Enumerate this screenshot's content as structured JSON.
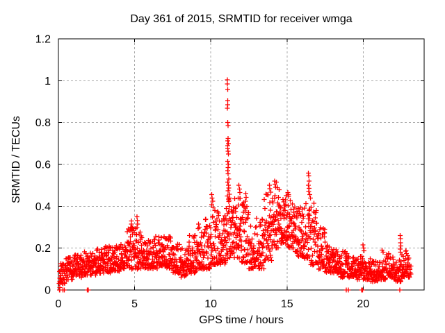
{
  "chart_data": {
    "type": "scatter",
    "title": "Day 361 of 2015, SRMTID for receiver wmga",
    "xlabel": "GPS time / hours",
    "ylabel": "SRMTID / TECUs",
    "xlim": [
      0,
      24
    ],
    "ylim": [
      0,
      1.2
    ],
    "xticks": [
      {
        "v": 0,
        "label": "0"
      },
      {
        "v": 5,
        "label": "5"
      },
      {
        "v": 10,
        "label": "10"
      },
      {
        "v": 15,
        "label": "15"
      },
      {
        "v": 20,
        "label": "20"
      }
    ],
    "yticks": [
      {
        "v": 0,
        "label": "0"
      },
      {
        "v": 0.2,
        "label": "0.2"
      },
      {
        "v": 0.4,
        "label": "0.4"
      },
      {
        "v": 0.6,
        "label": "0.6"
      },
      {
        "v": 0.8,
        "label": "0.8"
      },
      {
        "v": 1,
        "label": "1"
      },
      {
        "v": 1.2,
        "label": "1.2"
      }
    ],
    "grid": true,
    "legend": "none",
    "marker": {
      "shape": "plus",
      "color": "#ff0000",
      "size": 7
    },
    "colors": {
      "background": "#ffffff",
      "border": "#000000",
      "grid": "#a8a8a8",
      "text": "#000000"
    },
    "seed": 7,
    "band_bins": [
      [
        0.05,
        0.5,
        36,
        0.03,
        0.13
      ],
      [
        0.5,
        1.0,
        44,
        0.05,
        0.155
      ],
      [
        1.0,
        1.5,
        44,
        0.06,
        0.17
      ],
      [
        1.5,
        2.0,
        44,
        0.07,
        0.185
      ],
      [
        2.0,
        2.5,
        44,
        0.07,
        0.185
      ],
      [
        2.5,
        3.0,
        44,
        0.08,
        0.2
      ],
      [
        3.0,
        3.5,
        44,
        0.08,
        0.215
      ],
      [
        3.5,
        4.0,
        44,
        0.09,
        0.21
      ],
      [
        4.0,
        4.5,
        44,
        0.1,
        0.225
      ],
      [
        4.5,
        5.0,
        44,
        0.1,
        0.3
      ],
      [
        5.0,
        5.5,
        44,
        0.1,
        0.3
      ],
      [
        5.5,
        6.0,
        44,
        0.1,
        0.24
      ],
      [
        6.0,
        6.5,
        44,
        0.1,
        0.26
      ],
      [
        6.5,
        7.0,
        44,
        0.115,
        0.27
      ],
      [
        7.0,
        7.5,
        44,
        0.1,
        0.26
      ],
      [
        7.5,
        8.0,
        44,
        0.08,
        0.22
      ],
      [
        8.0,
        8.5,
        42,
        0.06,
        0.2
      ],
      [
        8.5,
        9.0,
        44,
        0.08,
        0.26
      ],
      [
        9.0,
        9.5,
        44,
        0.1,
        0.3
      ],
      [
        9.5,
        10.0,
        44,
        0.1,
        0.34
      ],
      [
        10.0,
        10.5,
        46,
        0.12,
        0.38
      ],
      [
        10.5,
        11.0,
        46,
        0.12,
        0.36
      ],
      [
        11.0,
        11.5,
        48,
        0.15,
        0.45
      ],
      [
        11.5,
        12.0,
        46,
        0.15,
        0.46
      ],
      [
        12.0,
        12.5,
        46,
        0.13,
        0.42
      ],
      [
        12.5,
        13.0,
        44,
        0.1,
        0.32
      ],
      [
        13.0,
        13.5,
        44,
        0.1,
        0.36
      ],
      [
        13.5,
        14.0,
        46,
        0.14,
        0.46
      ],
      [
        14.0,
        14.5,
        48,
        0.2,
        0.5
      ],
      [
        14.5,
        15.0,
        48,
        0.22,
        0.47
      ],
      [
        15.0,
        15.5,
        48,
        0.2,
        0.45
      ],
      [
        15.5,
        16.0,
        46,
        0.16,
        0.41
      ],
      [
        16.0,
        16.5,
        44,
        0.15,
        0.44
      ],
      [
        16.5,
        17.0,
        44,
        0.12,
        0.42
      ],
      [
        17.0,
        17.5,
        44,
        0.1,
        0.3
      ],
      [
        17.5,
        18.0,
        44,
        0.08,
        0.22
      ],
      [
        18.0,
        18.5,
        44,
        0.08,
        0.2
      ],
      [
        18.5,
        19.0,
        42,
        0.06,
        0.185
      ],
      [
        19.0,
        19.5,
        42,
        0.06,
        0.165
      ],
      [
        19.5,
        20.0,
        42,
        0.05,
        0.18
      ],
      [
        20.0,
        20.5,
        42,
        0.05,
        0.155
      ],
      [
        20.5,
        21.0,
        42,
        0.04,
        0.145
      ],
      [
        21.0,
        21.5,
        42,
        0.05,
        0.155
      ],
      [
        21.5,
        22.0,
        42,
        0.06,
        0.175
      ],
      [
        22.0,
        22.5,
        40,
        0.04,
        0.145
      ],
      [
        22.5,
        23.0,
        42,
        0.06,
        0.19
      ],
      [
        23.0,
        23.15,
        8,
        0.06,
        0.13
      ]
    ],
    "peak_points": [
      [
        11.08,
        1.005
      ],
      [
        11.09,
        0.985
      ],
      [
        11.11,
        0.958
      ],
      [
        11.1,
        0.905
      ],
      [
        11.12,
        0.885
      ],
      [
        11.09,
        0.868
      ],
      [
        11.11,
        0.8
      ],
      [
        11.13,
        0.785
      ],
      [
        11.13,
        0.725
      ],
      [
        11.1,
        0.712
      ],
      [
        11.15,
        0.7
      ],
      [
        11.12,
        0.69
      ],
      [
        11.11,
        0.676
      ],
      [
        11.14,
        0.663
      ],
      [
        11.16,
        0.65
      ],
      [
        11.12,
        0.615
      ],
      [
        11.15,
        0.6
      ],
      [
        11.13,
        0.585
      ],
      [
        11.11,
        0.57
      ],
      [
        11.14,
        0.556
      ],
      [
        11.18,
        0.53
      ],
      [
        11.12,
        0.515
      ],
      [
        11.16,
        0.5
      ],
      [
        11.19,
        0.488
      ],
      [
        11.13,
        0.474
      ],
      [
        11.22,
        0.458
      ],
      [
        11.25,
        0.44
      ],
      [
        11.2,
        0.43
      ],
      [
        4.78,
        0.33
      ],
      [
        4.8,
        0.315
      ],
      [
        4.82,
        0.3
      ],
      [
        4.76,
        0.29
      ],
      [
        5.15,
        0.35
      ],
      [
        5.18,
        0.332
      ],
      [
        5.2,
        0.315
      ],
      [
        5.16,
        0.298
      ],
      [
        9.2,
        0.315
      ],
      [
        9.23,
        0.3
      ],
      [
        10.05,
        0.455
      ],
      [
        10.08,
        0.44
      ],
      [
        10.12,
        0.424
      ],
      [
        10.07,
        0.408
      ],
      [
        10.15,
        0.395
      ],
      [
        11.85,
        0.5
      ],
      [
        11.88,
        0.482
      ],
      [
        11.9,
        0.465
      ],
      [
        12.3,
        0.46
      ],
      [
        12.33,
        0.442
      ],
      [
        12.28,
        0.425
      ],
      [
        13.85,
        0.5
      ],
      [
        13.88,
        0.484
      ],
      [
        13.95,
        0.468
      ],
      [
        14.18,
        0.52
      ],
      [
        14.22,
        0.505
      ],
      [
        14.3,
        0.515
      ],
      [
        14.26,
        0.49
      ],
      [
        15.05,
        0.465
      ],
      [
        15.1,
        0.455
      ],
      [
        16.4,
        0.558
      ],
      [
        16.42,
        0.545
      ],
      [
        16.44,
        0.52
      ],
      [
        16.4,
        0.5
      ],
      [
        16.46,
        0.486
      ],
      [
        16.43,
        0.47
      ],
      [
        16.5,
        0.455
      ],
      [
        16.55,
        0.44
      ],
      [
        19.98,
        0.215
      ],
      [
        20.02,
        0.2
      ],
      [
        20.05,
        0.188
      ],
      [
        21.25,
        0.19
      ],
      [
        21.3,
        0.18
      ],
      [
        22.42,
        0.26
      ],
      [
        22.45,
        0.245
      ],
      [
        22.44,
        0.226
      ],
      [
        22.47,
        0.21
      ],
      [
        22.43,
        0.196
      ],
      [
        22.46,
        0.18
      ]
    ],
    "zero_points": [
      [
        0.06,
        0
      ],
      [
        0.09,
        0
      ],
      [
        0.1,
        0.012
      ],
      [
        0.3,
        0
      ],
      [
        0.38,
        0
      ],
      [
        1.9,
        0
      ],
      [
        1.97,
        0
      ],
      [
        18.88,
        0
      ],
      [
        19.02,
        0
      ],
      [
        19.9,
        0
      ],
      [
        19.97,
        0
      ],
      [
        22.4,
        0
      ]
    ]
  }
}
